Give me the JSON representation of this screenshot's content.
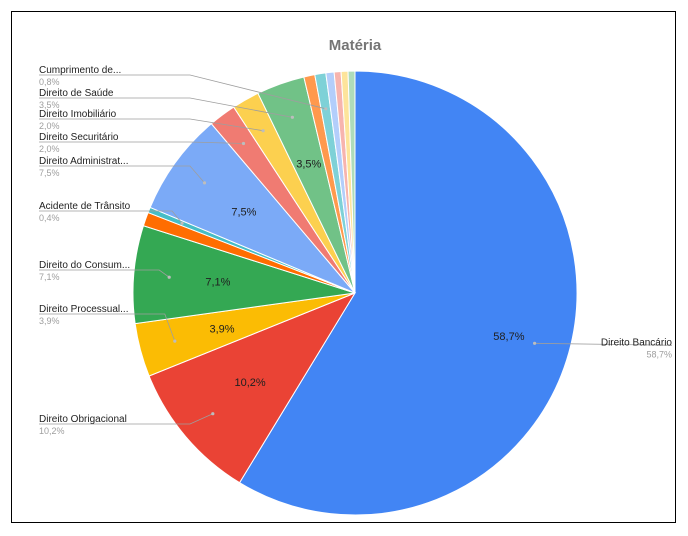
{
  "chart_data": {
    "type": "pie",
    "title": "Matéria",
    "slices": [
      {
        "label": "Direito Bancário",
        "value": 58.7,
        "display": "58,7%",
        "color": "#4285F4",
        "outer": true,
        "inner": true
      },
      {
        "label": "Direito Obrigacional",
        "value": 10.2,
        "display": "10,2%",
        "color": "#EA4335",
        "outer": true,
        "inner": true
      },
      {
        "label": "Direito Processual...",
        "value": 3.9,
        "display": "3,9%",
        "color": "#FBBC04",
        "outer": true,
        "inner": true
      },
      {
        "label": "Direito do Consum...",
        "value": 7.1,
        "display": "7,1%",
        "color": "#34A853",
        "outer": true,
        "inner": true
      },
      {
        "label": "",
        "value": 1.0,
        "display": "",
        "color": "#FF6D01",
        "outer": false,
        "inner": false
      },
      {
        "label": "Acidente de Trânsito",
        "value": 0.4,
        "display": "0,4%",
        "color": "#46BDC6",
        "outer": true,
        "inner": false
      },
      {
        "label": "Direito Administrat...",
        "value": 7.5,
        "display": "7,5%",
        "color": "#7BAAF7",
        "outer": true,
        "inner": true
      },
      {
        "label": "Direito Securitário",
        "value": 2.0,
        "display": "2,0%",
        "color": "#F07B72",
        "outer": true,
        "inner": false
      },
      {
        "label": "Direito Imobiliário",
        "value": 2.0,
        "display": "2,0%",
        "color": "#FCD04F",
        "outer": true,
        "inner": false
      },
      {
        "label": "Direito de Saúde",
        "value": 3.5,
        "display": "3,5%",
        "color": "#71C287",
        "outer": true,
        "inner": true
      },
      {
        "label": "",
        "value": 0.8,
        "display": "",
        "color": "#FF994D",
        "outer": false,
        "inner": false
      },
      {
        "label": "Cumprimento de...",
        "value": 0.8,
        "display": "0,8%",
        "color": "#7ED1D7",
        "outer": true,
        "inner": false
      },
      {
        "label": "",
        "value": 0.6,
        "display": "",
        "color": "#B3CEFB",
        "outer": false,
        "inner": false
      },
      {
        "label": "",
        "value": 0.5,
        "display": "",
        "color": "#F7B4AE",
        "outer": false,
        "inner": false
      },
      {
        "label": "",
        "value": 0.5,
        "display": "",
        "color": "#FDE49B",
        "outer": false,
        "inner": false
      },
      {
        "label": "",
        "value": 0.5,
        "display": "",
        "color": "#AEDCBA",
        "outer": false,
        "inner": false
      }
    ],
    "legend": "none"
  }
}
